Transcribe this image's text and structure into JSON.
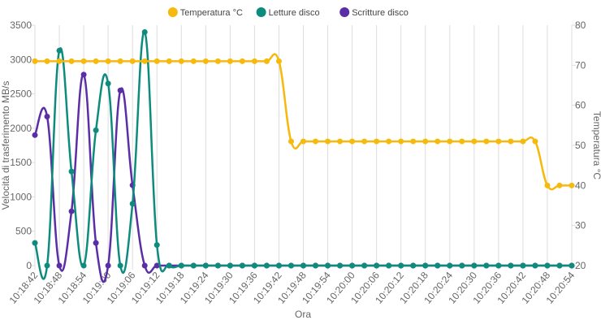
{
  "chart_data": {
    "type": "line",
    "categories": [
      "10:18:42",
      null,
      "10:18:48",
      null,
      "10:18:54",
      null,
      "10:19:00",
      null,
      "10:19:06",
      null,
      "10:19:12",
      null,
      "10:19:18",
      null,
      "10:19:24",
      null,
      "10:19:30",
      null,
      "10:19:36",
      null,
      "10:19:42",
      null,
      "10:19:48",
      null,
      "10:19:54",
      null,
      "10:20:00",
      null,
      "10:20:06",
      null,
      "10:20:12",
      null,
      "10:20:18",
      null,
      "10:20:24",
      null,
      "10:20:30",
      null,
      "10:20:36",
      null,
      "10:20:42",
      null,
      "10:20:48",
      null,
      "10:20:54"
    ],
    "series": [
      {
        "name": "Temperatura °C",
        "color": "#f6b90e",
        "axis": "y2",
        "values": [
          71,
          71,
          71,
          71,
          71,
          71,
          71,
          71,
          71,
          71,
          71,
          71,
          71,
          71,
          71,
          71,
          71,
          71,
          71,
          71,
          71,
          51,
          51,
          51,
          51,
          51,
          51,
          51,
          51,
          51,
          51,
          51,
          51,
          51,
          51,
          51,
          51,
          51,
          51,
          51,
          51,
          51,
          40,
          40,
          40
        ]
      },
      {
        "name": "Letture disco",
        "color": "#0d8c7d",
        "values": [
          330,
          0,
          3130,
          1370,
          0,
          1970,
          2650,
          0,
          900,
          3400,
          300,
          0,
          0,
          0,
          0,
          0,
          0,
          0,
          0,
          0,
          0,
          0,
          0,
          0,
          0,
          0,
          0,
          0,
          0,
          0,
          0,
          0,
          0,
          0,
          0,
          0,
          0,
          0,
          0,
          0,
          0,
          0,
          0,
          0,
          0
        ]
      },
      {
        "name": "Scritture disco",
        "color": "#5b2ea6",
        "values": [
          1900,
          2170,
          0,
          790,
          2780,
          330,
          0,
          2550,
          1170,
          0,
          0,
          0,
          0,
          0,
          0,
          0,
          0,
          0,
          0,
          0,
          0,
          0,
          0,
          0,
          0,
          0,
          0,
          0,
          0,
          0,
          0,
          0,
          0,
          0,
          0,
          0,
          0,
          0,
          0,
          0,
          0,
          0,
          0,
          0,
          0
        ]
      }
    ],
    "xlabel": "Ora",
    "ylabel": "Velocità di trasferimento MB/s",
    "y2label": "Temperatura °C",
    "ylim": [
      0,
      3500
    ],
    "yticks": [
      0,
      500,
      1000,
      1500,
      2000,
      2500,
      3000,
      3500
    ],
    "y2lim": [
      20,
      80
    ],
    "y2ticks": [
      20,
      30,
      40,
      50,
      60,
      70,
      80
    ],
    "xgrid": true,
    "ygrid": false,
    "legend": "top"
  }
}
